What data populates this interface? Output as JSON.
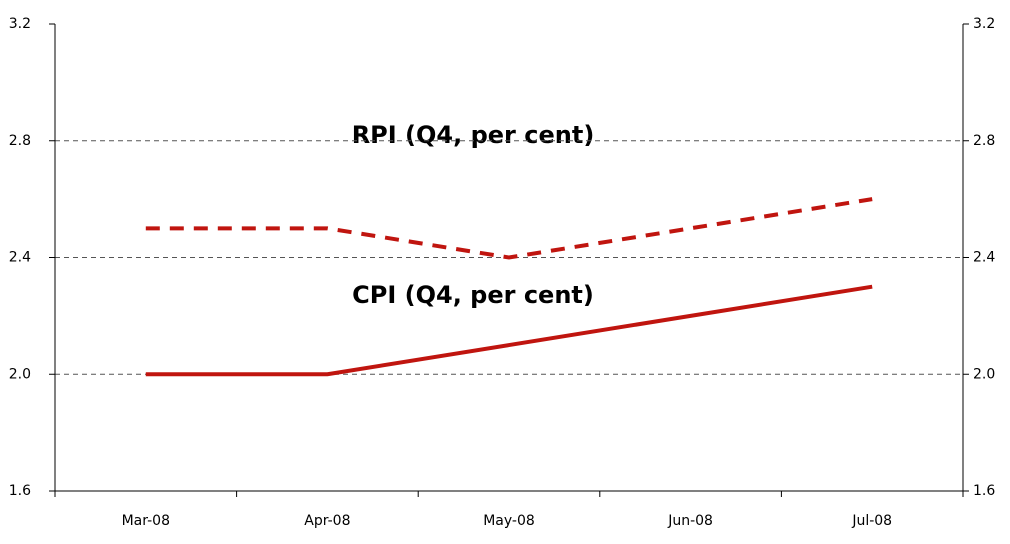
{
  "chart_data": {
    "type": "line",
    "categories": [
      "Mar-08",
      "Apr-08",
      "May-08",
      "Jun-08",
      "Jul-08"
    ],
    "series": [
      {
        "name": "RPI (Q4, per cent)",
        "color": "#c0150f",
        "dash": true,
        "values": [
          2.5,
          2.5,
          2.4,
          2.5,
          2.6
        ]
      },
      {
        "name": "CPI (Q4, per cent)",
        "color": "#c0150f",
        "dash": false,
        "values": [
          2.0,
          2.0,
          2.1,
          2.2,
          2.3
        ]
      }
    ],
    "ylim": [
      1.6,
      3.2
    ],
    "yticks": [
      1.6,
      {
        "value": 2,
        "label": "2.0"
      },
      2.4,
      2.8,
      3.2
    ],
    "y2lim": [
      1.6,
      3.2
    ],
    "y2ticks": [
      1.6,
      {
        "value": 2,
        "label": "2.0"
      },
      2.4,
      2.8,
      3.2
    ],
    "grid": true
  }
}
